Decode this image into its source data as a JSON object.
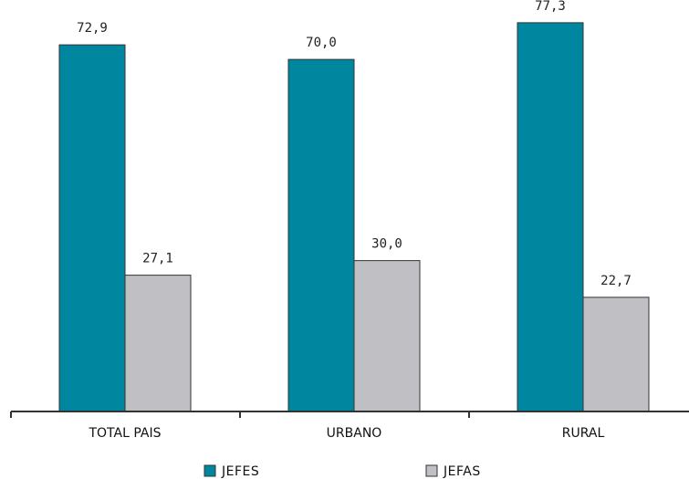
{
  "chart_data": {
    "type": "bar",
    "categories": [
      "TOTAL PAIS",
      "URBANO",
      "RURAL"
    ],
    "series": [
      {
        "name": "JEFES",
        "values": [
          72.9,
          70.0,
          77.3
        ],
        "labels": [
          "72,9",
          "70,0",
          "77,3"
        ],
        "color": "#00869f"
      },
      {
        "name": "JEFAS",
        "values": [
          27.1,
          30.0,
          22.7
        ],
        "labels": [
          "27,1",
          "30,0",
          "22,7"
        ],
        "color": "#c0c0c4"
      }
    ],
    "title": "",
    "xlabel": "",
    "ylabel": "",
    "ylim": [
      0,
      80
    ],
    "grid": false,
    "legend": "bottom-center"
  }
}
